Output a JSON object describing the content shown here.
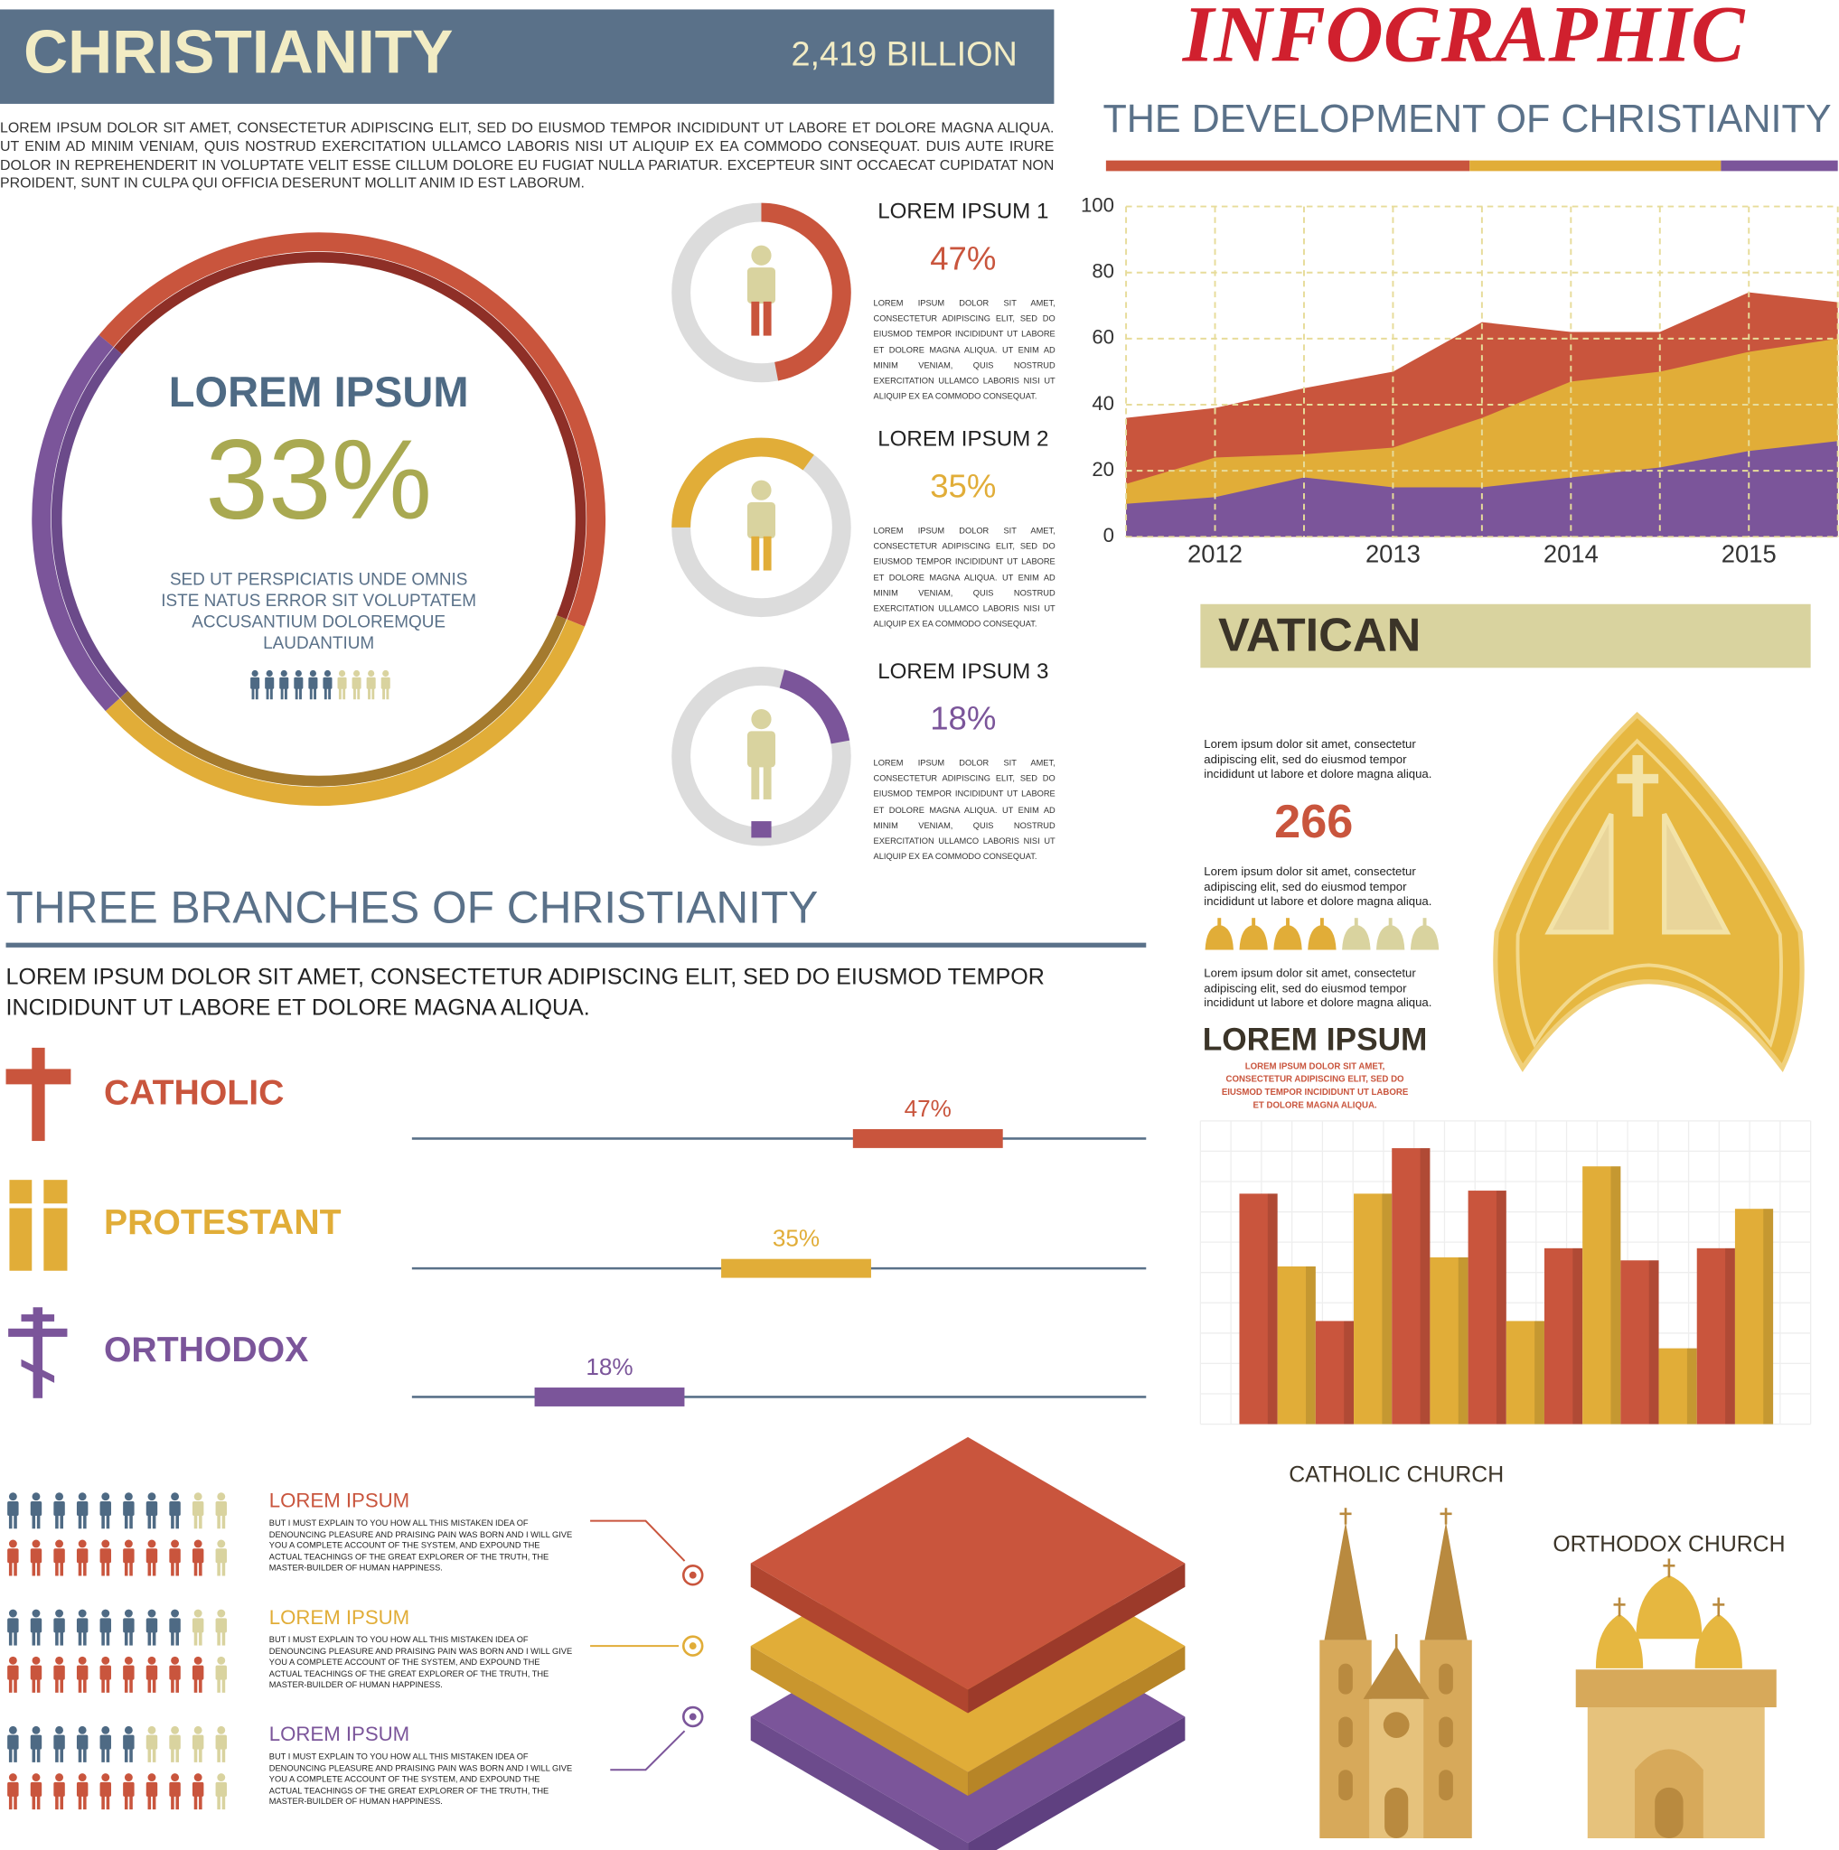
{
  "header": {
    "title": "CHRISTIANITY",
    "stat": "2,419 BILLION",
    "intro": "LOREM IPSUM DOLOR SIT AMET, CONSECTETUR ADIPISCING ELIT, SED DO EIUSMOD TEMPOR INCIDIDUNT UT LABORE ET DOLORE MAGNA ALIQUA. UT ENIM AD MINIM VENIAM, QUIS NOSTRUD EXERCITATION ULLAMCO LABORIS NISI UT ALIQUIP EX EA COMMODO CONSEQUAT. DUIS AUTE IRURE DOLOR IN REPREHENDERIT IN VOLUPTATE VELIT ESSE CILLUM DOLORE EU FUGIAT NULLA PARIATUR. EXCEPTEUR SINT OCCAECAT CUPIDATAT NON PROIDENT, SUNT IN CULPA QUI OFFICIA DESERUNT MOLLIT ANIM ID EST LABORUM."
  },
  "ring": {
    "title": "LOREM IPSUM",
    "value": "33%",
    "lines": [
      "SED UT PERSPICIATIS UNDE OMNIS",
      "ISTE NATUS ERROR SIT VOLUPTATEM",
      "ACCUSANTIUM DOLOREMQUE",
      "LAUDANTIUM"
    ]
  },
  "donuts": [
    {
      "label": "LOREM IPSUM 1",
      "value": 47,
      "value_label": "47%",
      "color": "#c9553d",
      "text": "LOREM IPSUM DOLOR SIT AMET, CONSECTETUR ADIPISCING ELIT, SED DO EIUSMOD TEMPOR INCIDIDUNT UT LABORE ET DOLORE MAGNA ALIQUA. UT ENIM AD MINIM VENIAM, QUIS NOSTRUD EXERCITATION ULLAMCO LABORIS NISI UT ALIQUIP EX EA COMMODO CONSEQUAT."
    },
    {
      "label": "LOREM IPSUM 2",
      "value": 35,
      "value_label": "35%",
      "color": "#e1ad38",
      "text": "LOREM IPSUM DOLOR SIT AMET, CONSECTETUR ADIPISCING ELIT, SED DO EIUSMOD TEMPOR INCIDIDUNT UT LABORE ET DOLORE MAGNA ALIQUA. UT ENIM AD MINIM VENIAM, QUIS NOSTRUD EXERCITATION ULLAMCO LABORIS NISI UT ALIQUIP EX EA COMMODO CONSEQUAT."
    },
    {
      "label": "LOREM IPSUM 3",
      "value": 18,
      "value_label": "18%",
      "color": "#7b559a",
      "text": "LOREM IPSUM DOLOR SIT AMET, CONSECTETUR ADIPISCING ELIT, SED DO EIUSMOD TEMPOR INCIDIDUNT UT LABORE ET DOLORE MAGNA ALIQUA. UT ENIM AD MINIM VENIAM, QUIS NOSTRUD EXERCITATION ULLAMCO LABORIS NISI UT ALIQUIP EX EA COMMODO CONSEQUAT."
    }
  ],
  "development": {
    "title": "INFOGRAPHIC",
    "subtitle": "THE DEVELOPMENT OF CHRISTIANITY"
  },
  "chart_data": [
    {
      "type": "area",
      "x": [
        2011.5,
        2012,
        2012.5,
        2013,
        2013.5,
        2014,
        2014.5,
        2015,
        2015.5
      ],
      "xlim": [
        2011.5,
        2015.5
      ],
      "xticks": [
        2012,
        2013,
        2014,
        2015
      ],
      "ylim": [
        0,
        100
      ],
      "yticks": [
        0,
        20,
        40,
        60,
        80,
        100
      ],
      "grid": true,
      "series": [
        {
          "color": "#c9553d",
          "values": [
            36,
            39,
            45,
            50,
            65,
            62,
            62,
            74,
            71
          ]
        },
        {
          "color": "#e1ad38",
          "values": [
            16,
            24,
            25,
            27,
            36,
            47,
            50,
            56,
            60
          ]
        },
        {
          "color": "#7b559a",
          "values": [
            10,
            12,
            18,
            15,
            15,
            18,
            21,
            26,
            29
          ]
        }
      ]
    },
    {
      "type": "bar",
      "categories": [
        null,
        null,
        null,
        null,
        null,
        null,
        null,
        null,
        null,
        null,
        null,
        null,
        null,
        null
      ],
      "values": [
        76,
        52,
        34,
        76,
        91,
        55,
        77,
        34,
        58,
        85,
        54,
        25,
        58,
        71
      ],
      "colors": [
        "#c9553d",
        "#e1ad38",
        "#c9553d",
        "#e1ad38",
        "#c9553d",
        "#e1ad38",
        "#c9553d",
        "#e1ad38",
        "#c9553d",
        "#e1ad38",
        "#c9553d",
        "#e1ad38",
        "#c9553d",
        "#e1ad38"
      ],
      "ylim": [
        0,
        100
      ]
    }
  ],
  "vatican": {
    "title": "VATICAN",
    "paragraphs": [
      "Lorem ipsum dolor sit amet, consectetur adipiscing elit, sed do eiusmod tempor incididunt ut labore et dolore magna aliqua.",
      "Lorem ipsum dolor sit amet, consectetur adipiscing elit, sed do eiusmod tempor incididunt ut labore et dolore magna aliqua.",
      "Lorem ipsum dolor sit amet, consectetur adipiscing elit, sed do eiusmod tempor incididunt ut labore et dolore magna aliqua."
    ],
    "number": "266",
    "heading": "LOREM IPSUM",
    "caption": "LOREM IPSUM DOLOR SIT AMET, CONSECTETUR ADIPISCING ELIT, SED DO EIUSMOD TEMPOR INCIDIDUNT UT LABORE ET DOLORE MAGNA ALIQUA."
  },
  "branches": {
    "title": "THREE BRANCHES OF CHRISTIANITY",
    "text": "LOREM IPSUM DOLOR SIT AMET, CONSECTETUR ADIPISCING ELIT, SED DO EIUSMOD TEMPOR INCIDIDUNT UT LABORE ET DOLORE MAGNA ALIQUA.",
    "items": [
      {
        "name": "CATHOLIC",
        "value": 47,
        "value_label": "47%",
        "color": "#c9553d"
      },
      {
        "name": "PROTESTANT",
        "value": 35,
        "value_label": "35%",
        "color": "#e1ad38"
      },
      {
        "name": "ORTHODOX",
        "value": 18,
        "value_label": "18%",
        "color": "#7b559a"
      }
    ]
  },
  "groups": [
    {
      "label": "LOREM IPSUM",
      "color": "#c9553d",
      "text": "BUT I MUST EXPLAIN TO YOU HOW ALL THIS MISTAKEN IDEA OF DENOUNCING PLEASURE AND PRAISING PAIN WAS BORN AND I WILL GIVE YOU A COMPLETE ACCOUNT OF THE SYSTEM, AND EXPOUND THE ACTUAL TEACHINGS OF THE GREAT EXPLORER OF THE TRUTH, THE MASTER-BUILDER OF HUMAN HAPPINESS."
    },
    {
      "label": "LOREM IPSUM",
      "color": "#e1ad38",
      "text": "BUT I MUST EXPLAIN TO YOU HOW ALL THIS MISTAKEN IDEA OF DENOUNCING PLEASURE AND PRAISING PAIN WAS BORN AND I WILL GIVE YOU A COMPLETE ACCOUNT OF THE SYSTEM, AND EXPOUND THE ACTUAL TEACHINGS OF THE GREAT EXPLORER OF THE TRUTH, THE MASTER-BUILDER OF HUMAN HAPPINESS."
    },
    {
      "label": "LOREM IPSUM",
      "color": "#7b559a",
      "text": "BUT I MUST EXPLAIN TO YOU HOW ALL THIS MISTAKEN IDEA OF DENOUNCING PLEASURE AND PRAISING PAIN WAS BORN AND I WILL GIVE YOU A COMPLETE ACCOUNT OF THE SYSTEM, AND EXPOUND THE ACTUAL TEACHINGS OF THE GREAT EXPLORER OF THE TRUTH, THE MASTER-BUILDER OF HUMAN HAPPINESS."
    }
  ],
  "churches": {
    "catholic": "CATHOLIC CHURCH",
    "orthodox": "ORTHODOX CHURCH"
  }
}
